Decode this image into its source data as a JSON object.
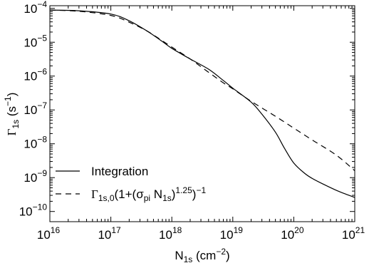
{
  "chart_data": {
    "type": "line",
    "title": "",
    "xscale": "log",
    "yscale": "log",
    "xlim": [
      1e+16,
      1e+21
    ],
    "ylim": [
      5e-11,
      0.00012
    ],
    "xlabel": {
      "main": "N",
      "sub": "1s",
      "unit_open": " (cm",
      "unit_sup": "−2",
      "unit_close": ")"
    },
    "ylabel": {
      "main": "Γ",
      "sub": "1s",
      "unit_open": " (s",
      "unit_sup": "−1",
      "unit_close": ")"
    },
    "x_ticks": [
      {
        "value": 1e+16,
        "base": "10",
        "exp": "16"
      },
      {
        "value": 1e+17,
        "base": "10",
        "exp": "17"
      },
      {
        "value": 1e+18,
        "base": "10",
        "exp": "18"
      },
      {
        "value": 1e+19,
        "base": "10",
        "exp": "19"
      },
      {
        "value": 1e+20,
        "base": "10",
        "exp": "20"
      },
      {
        "value": 1e+21,
        "base": "10",
        "exp": "21"
      }
    ],
    "y_ticks": [
      {
        "value": 1e-10,
        "base": "10",
        "exp": "−10"
      },
      {
        "value": 1e-09,
        "base": "10",
        "exp": "−9"
      },
      {
        "value": 1e-08,
        "base": "10",
        "exp": "−8"
      },
      {
        "value": 1e-07,
        "base": "10",
        "exp": "−7"
      },
      {
        "value": 1e-06,
        "base": "10",
        "exp": "−6"
      },
      {
        "value": 1e-05,
        "base": "10",
        "exp": "−5"
      },
      {
        "value": 0.0001,
        "base": "10",
        "exp": "−4"
      }
    ],
    "grid": false,
    "legend": {
      "position": "bottom-left"
    },
    "series": [
      {
        "name": "Integration",
        "style": "solid",
        "color": "#000000",
        "x": [
          1e+16,
          3e+16,
          1e+17,
          2e+17,
          4e+17,
          7e+17,
          1e+18,
          2e+18,
          4e+18,
          7e+18,
          1e+19,
          2e+19,
          3e+19,
          5e+19,
          7e+19,
          1e+20,
          1.5e+20,
          2e+20,
          3e+20,
          5e+20,
          7e+20,
          1e+21
        ],
        "y": [
          8.9e-05,
          8.5e-05,
          6.8e-05,
          4.3e-05,
          2.1e-05,
          1.05e-05,
          6.6e-06,
          3.2e-06,
          1.6e-06,
          7.4e-07,
          4.4e-07,
          1.7e-07,
          7.5e-08,
          2.2e-08,
          7.5e-09,
          2.7e-09,
          1.35e-09,
          9.5e-10,
          6.5e-10,
          4.2e-10,
          3.3e-10,
          2.6e-10
        ]
      },
      {
        "name_parts": [
          "Γ",
          "1s,0",
          "(1+(σ",
          "pi",
          " N",
          "1s",
          ")",
          "1.25",
          ")",
          "−1"
        ],
        "style": "dashed",
        "color": "#000000",
        "x": [
          1e+16,
          3e+16,
          1e+17,
          2e+17,
          4e+17,
          7e+17,
          1e+18,
          2e+18,
          4e+18,
          7e+18,
          1e+19,
          2e+19,
          5e+19,
          1e+20,
          2e+20,
          5e+20,
          1e+21
        ],
        "y": [
          8.9e-05,
          8.2e-05,
          6.2e-05,
          3.9e-05,
          2.1e-05,
          1.1e-05,
          7.2e-06,
          3.2e-06,
          1.3e-06,
          6.3e-07,
          4.2e-07,
          1.8e-07,
          6.5e-08,
          2.9e-08,
          1.3e-08,
          4.6e-09,
          1.6e-09
        ]
      }
    ]
  }
}
